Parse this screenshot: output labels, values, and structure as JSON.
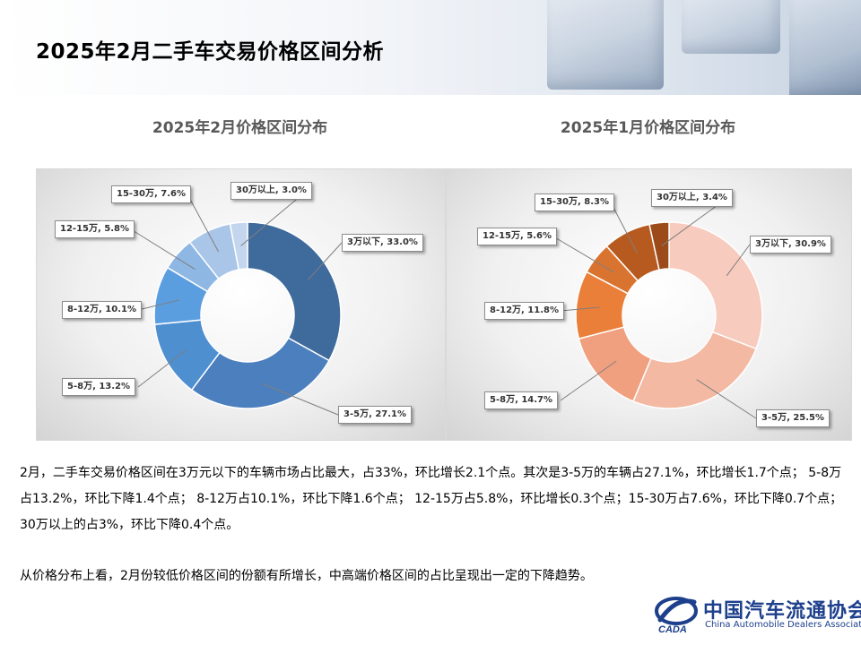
{
  "page": {
    "title": "2025年2月二手车交易价格区间分析"
  },
  "chart_data": [
    {
      "type": "pie",
      "variant": "donut",
      "title": "2025年2月价格区间分布",
      "categories": [
        "3万以下",
        "3-5万",
        "5-8万",
        "8-12万",
        "12-15万",
        "15-30万",
        "30万以上"
      ],
      "values": [
        33.0,
        27.1,
        13.2,
        10.1,
        5.8,
        7.6,
        3.0
      ],
      "labels": [
        "3万以下, 33.0%",
        "3-5万, 27.1%",
        "5-8万, 13.2%",
        "8-12万, 10.1%",
        "12-15万, 5.8%",
        "15-30万, 7.6%",
        "30万以上, 3.0%"
      ],
      "colors": [
        "#3e6a9c",
        "#4b7fbd",
        "#4e8fd0",
        "#5b9ee0",
        "#8eb7e3",
        "#a9c6e8",
        "#c4d6ee"
      ]
    },
    {
      "type": "pie",
      "variant": "donut",
      "title": "2025年1月价格区间分布",
      "categories": [
        "3万以下",
        "3-5万",
        "5-8万",
        "8-12万",
        "12-15万",
        "15-30万",
        "30万以上"
      ],
      "values": [
        30.9,
        25.5,
        14.7,
        11.8,
        5.6,
        8.3,
        3.4
      ],
      "labels": [
        "3万以下, 30.9%",
        "3-5万, 25.5%",
        "5-8万, 14.7%",
        "8-12万, 11.8%",
        "12-15万, 5.6%",
        "15-30万, 8.3%",
        "30万以上, 3.4%"
      ],
      "colors": [
        "#f7cbbd",
        "#f3b9a3",
        "#f0a07f",
        "#ea7f3a",
        "#d97430",
        "#b75a20",
        "#9c4a1a"
      ]
    }
  ],
  "text": {
    "paragraph1": "2月，二手车交易价格区间在3万元以下的车辆市场占比最大，占33%，环比增长2.1个点。其次是3-5万的车辆占27.1%，环比增长1.7个点；  5-8万占13.2%，环比下降1.4个点；  8-12万占10.1%，环比下降1.6个点；  12-15万占5.8%，环比增长0.3个点；15-30万占7.6%，环比下降0.7个点；  30万以上的占3%，环比下降0.4个点。",
    "paragraph2": "从价格分布上看，2月份较低价格区间的份额有所增长，中高端价格区间的占比呈现出一定的下降趋势。"
  },
  "logo": {
    "name_cn": "中国汽车流通协会",
    "name_en": "China Automobile Dealers Association",
    "mark_text": "CADA"
  }
}
